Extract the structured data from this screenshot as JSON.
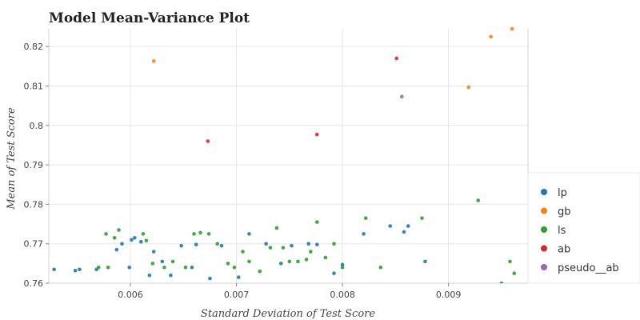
{
  "chart_data": {
    "type": "scatter",
    "title": "Model Mean-Variance Plot",
    "xlabel": "Standard Deviation of Test Score",
    "ylabel": "Mean of Test Score",
    "xlim": [
      0.00523,
      0.00975
    ],
    "ylim": [
      0.76,
      0.8245
    ],
    "x_ticks": [
      "0.006",
      "0.007",
      "0.008",
      "0.009"
    ],
    "x_tick_values": [
      0.006,
      0.007,
      0.008,
      0.009
    ],
    "y_ticks": [
      "0.76",
      "0.77",
      "0.78",
      "0.79",
      "0.8",
      "0.81",
      "0.82"
    ],
    "y_tick_values": [
      0.76,
      0.77,
      0.78,
      0.79,
      0.8,
      0.81,
      0.82
    ],
    "grid": true,
    "legend_position": "right",
    "series": [
      {
        "name": "lp",
        "color": "#1f77b4",
        "points": [
          [
            0.00528,
            0.7635
          ],
          [
            0.00548,
            0.7632
          ],
          [
            0.00552,
            0.7635
          ],
          [
            0.00568,
            0.7635
          ],
          [
            0.00587,
            0.7685
          ],
          [
            0.00592,
            0.77
          ],
          [
            0.00599,
            0.764
          ],
          [
            0.00601,
            0.771
          ],
          [
            0.00604,
            0.7715
          ],
          [
            0.0061,
            0.7705
          ],
          [
            0.00618,
            0.762
          ],
          [
            0.00622,
            0.768
          ],
          [
            0.0063,
            0.7655
          ],
          [
            0.00638,
            0.762
          ],
          [
            0.00648,
            0.7695
          ],
          [
            0.00658,
            0.764
          ],
          [
            0.00662,
            0.7698
          ],
          [
            0.00675,
            0.7612
          ],
          [
            0.00686,
            0.7695
          ],
          [
            0.00702,
            0.7615
          ],
          [
            0.00712,
            0.7725
          ],
          [
            0.00728,
            0.77
          ],
          [
            0.00742,
            0.765
          ],
          [
            0.00752,
            0.7695
          ],
          [
            0.00768,
            0.77
          ],
          [
            0.00776,
            0.7698
          ],
          [
            0.00792,
            0.7625
          ],
          [
            0.008,
            0.7647
          ],
          [
            0.0082,
            0.7725
          ],
          [
            0.00845,
            0.7745
          ],
          [
            0.00858,
            0.773
          ],
          [
            0.00862,
            0.7745
          ],
          [
            0.00878,
            0.7655
          ]
        ]
      },
      {
        "name": "gb",
        "color": "#ff7f0e",
        "points": [
          [
            0.00622,
            0.8163
          ],
          [
            0.00919,
            0.8097
          ],
          [
            0.0094,
            0.8225
          ],
          [
            0.0096,
            0.8245
          ]
        ]
      },
      {
        "name": "ls",
        "color": "#2ca02c",
        "points": [
          [
            0.0057,
            0.764
          ],
          [
            0.00577,
            0.7725
          ],
          [
            0.00579,
            0.764
          ],
          [
            0.00585,
            0.7715
          ],
          [
            0.00589,
            0.7735
          ],
          [
            0.00612,
            0.7725
          ],
          [
            0.00615,
            0.7708
          ],
          [
            0.00621,
            0.765
          ],
          [
            0.00632,
            0.764
          ],
          [
            0.0064,
            0.7655
          ],
          [
            0.00652,
            0.764
          ],
          [
            0.0066,
            0.7725
          ],
          [
            0.00666,
            0.7728
          ],
          [
            0.00674,
            0.7725
          ],
          [
            0.00682,
            0.77
          ],
          [
            0.00692,
            0.765
          ],
          [
            0.00698,
            0.764
          ],
          [
            0.00706,
            0.768
          ],
          [
            0.00712,
            0.7655
          ],
          [
            0.00722,
            0.763
          ],
          [
            0.00732,
            0.769
          ],
          [
            0.00738,
            0.774
          ],
          [
            0.00744,
            0.769
          ],
          [
            0.0075,
            0.7655
          ],
          [
            0.00758,
            0.7655
          ],
          [
            0.00766,
            0.766
          ],
          [
            0.0077,
            0.768
          ],
          [
            0.00776,
            0.7755
          ],
          [
            0.00784,
            0.7665
          ],
          [
            0.00792,
            0.77
          ],
          [
            0.008,
            0.764
          ],
          [
            0.00822,
            0.7765
          ],
          [
            0.00836,
            0.764
          ],
          [
            0.00875,
            0.7765
          ],
          [
            0.00928,
            0.781
          ],
          [
            0.0095,
            0.76
          ],
          [
            0.00958,
            0.7655
          ],
          [
            0.00962,
            0.7625
          ]
        ]
      },
      {
        "name": "ab",
        "color": "#d62728",
        "points": [
          [
            0.00673,
            0.796
          ],
          [
            0.00776,
            0.7977
          ],
          [
            0.00851,
            0.817
          ]
        ]
      },
      {
        "name": "pseudo__ab",
        "color": "#9467bd",
        "points": [
          [
            0.00856,
            0.8073
          ]
        ]
      }
    ]
  }
}
